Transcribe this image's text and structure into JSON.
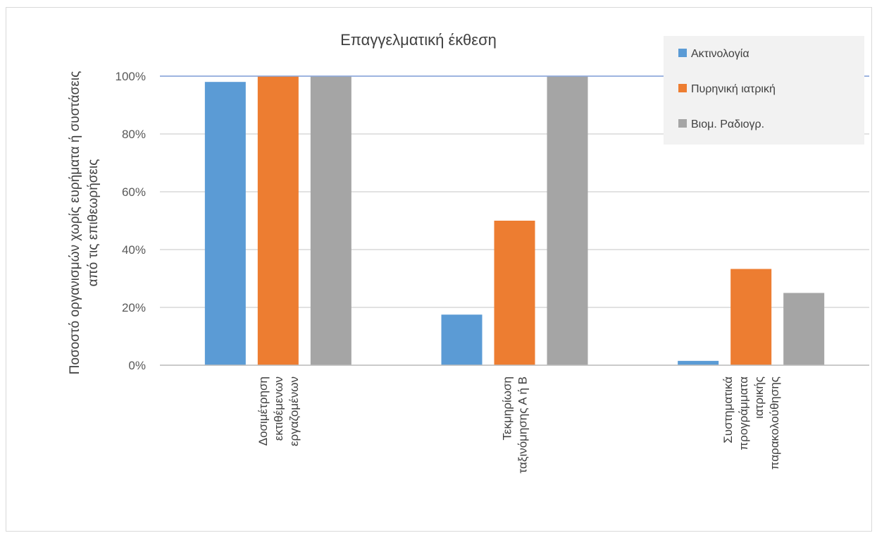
{
  "chart_data": {
    "type": "bar",
    "title": "Επαγγελματική έκθεση",
    "ylabel": "Ποσοστό οργανισμών χωρίς ευρήματα  ή συστάσεις από τις επιθεωρήσεις",
    "xlabel": "",
    "categories": [
      "Δοσιμέτρηση εκτιθέμενων εργαζομένων",
      "Τεκμηρίωση ταξινόμησης Α ή Β",
      "Συστηματικά προγράμματα ιατρικής παρακολούθησης"
    ],
    "category_lines": [
      [
        "Δοσιμέτρηση",
        "εκτιθέμενων",
        "εργαζομένων"
      ],
      [
        "Τεκμηρίωση",
        "ταξινόμησης Α ή Β"
      ],
      [
        "Συστηματικά",
        "προγράμματα",
        "ιατρικής",
        "παρακολούθησης"
      ]
    ],
    "series": [
      {
        "name": "Ακτινολογία",
        "color": "#5b9bd5",
        "values": [
          98,
          17.5,
          1.5
        ]
      },
      {
        "name": "Πυρηνική ιατρική",
        "color": "#ed7d31",
        "values": [
          100,
          50,
          33.3
        ]
      },
      {
        "name": "Βιομ. Ραδιογρ.",
        "color": "#a5a5a5",
        "values": [
          100,
          100,
          25
        ]
      }
    ],
    "ylim": [
      0,
      100
    ],
    "yticks": [
      0,
      20,
      40,
      60,
      80,
      100
    ],
    "ytick_labels": [
      "0%",
      "20%",
      "40%",
      "60%",
      "80%",
      "100%"
    ],
    "grid": true,
    "legend": "top-right"
  }
}
